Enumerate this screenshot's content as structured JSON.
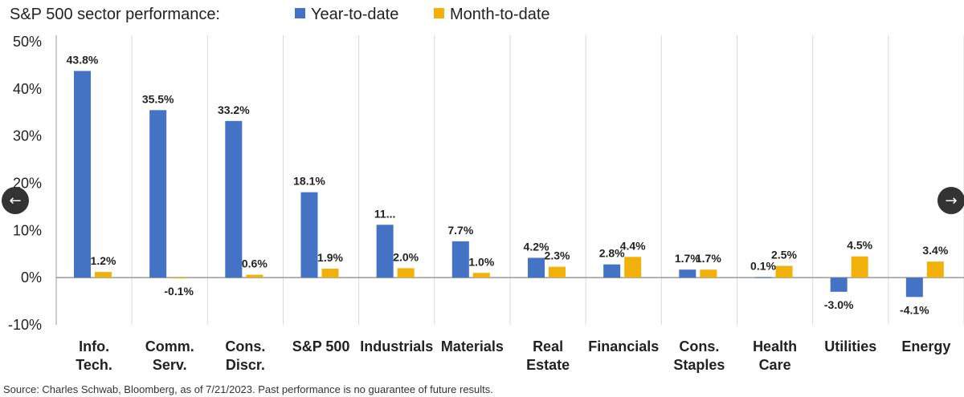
{
  "chart_data": {
    "type": "bar",
    "title": "S&P 500 sector performance:",
    "categories": [
      [
        "Info.",
        "Tech."
      ],
      [
        "Comm.",
        "Serv."
      ],
      [
        "Cons.",
        "Discr."
      ],
      [
        "S&P 500"
      ],
      [
        "Industrials"
      ],
      [
        "Materials"
      ],
      [
        "Real",
        "Estate"
      ],
      [
        "Financials"
      ],
      [
        "Cons.",
        "Staples"
      ],
      [
        "Health",
        "Care"
      ],
      [
        "Utilities"
      ],
      [
        "Energy"
      ]
    ],
    "series": [
      {
        "name": "Year-to-date",
        "color": "#4472C4",
        "values": [
          43.8,
          35.5,
          33.2,
          18.1,
          11.2,
          7.7,
          4.2,
          2.8,
          1.7,
          0.1,
          -3.0,
          -4.1
        ],
        "labels": [
          "43.8%",
          "35.5%",
          "33.2%",
          "18.1%",
          "11...",
          "7.7%",
          "4.2%",
          "2.8%",
          "1.7%",
          "0.1%",
          "-3.0%",
          "-4.1%"
        ]
      },
      {
        "name": "Month-to-date",
        "color": "#F2B10A",
        "values": [
          1.2,
          -0.1,
          0.6,
          1.9,
          2.0,
          1.0,
          2.3,
          4.4,
          1.7,
          2.5,
          4.5,
          3.4
        ],
        "labels": [
          "1.2%",
          "-0.1%",
          "0.6%",
          "1.9%",
          "2.0%",
          "1.0%",
          "2.3%",
          "4.4%",
          "1.7%",
          "2.5%",
          "4.5%",
          "3.4%"
        ]
      }
    ],
    "ylim": [
      -10,
      50
    ],
    "yticks": [
      -10,
      0,
      10,
      20,
      30,
      40,
      50
    ],
    "ytick_labels": [
      "-10%",
      "0%",
      "10%",
      "20%",
      "30%",
      "40%",
      "50%"
    ],
    "grid": "vertical separators between categories",
    "legend": "top, inline with title"
  },
  "source_note": "Source: Charles Schwab, Bloomberg, as of 7/21/2023. Past performance is no guarantee of future results.",
  "nav": {
    "prev_icon": "←",
    "next_icon": "→"
  }
}
